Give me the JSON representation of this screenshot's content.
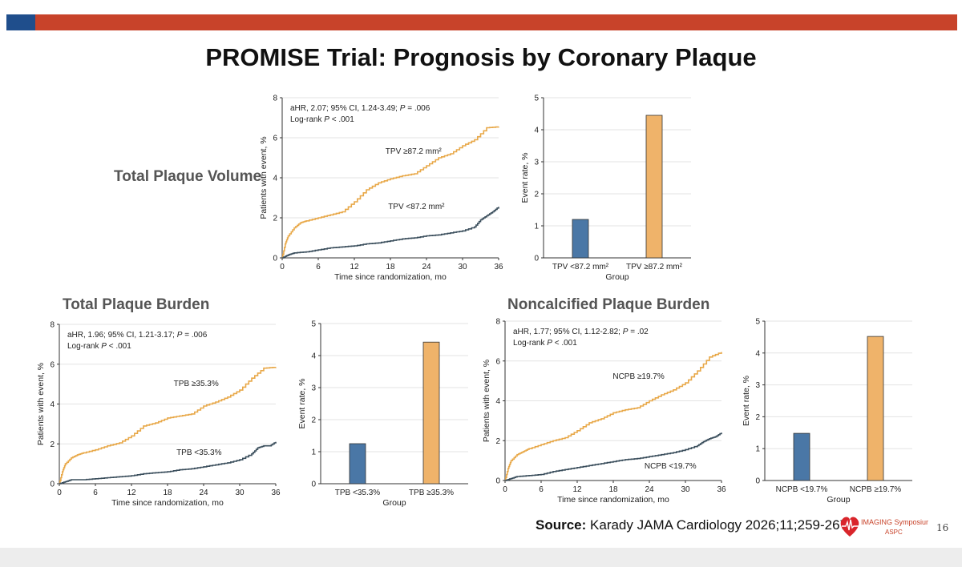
{
  "title": "PROMISE Trial: Prognosis by Coronary Plaque",
  "sections": [
    {
      "label": "Total Plaque Volume"
    },
    {
      "label": "Total Plaque Burden"
    },
    {
      "label": "Noncalcified Plaque Burden"
    }
  ],
  "source": {
    "prefix": "Source:",
    "text": " Karady JAMA Cardiology 2026;11;259-267."
  },
  "logo": {
    "line1": "IMAGING Symposium",
    "line2": "ASPC",
    "icon": "heart-ecg-icon"
  },
  "page_number": "16",
  "colors": {
    "high": "#e8a848",
    "low": "#3a4e5c",
    "bar_low": "#4a77a6",
    "bar_high": "#efb36a",
    "accent_red": "#c8432a",
    "accent_blue": "#1f4e8c"
  },
  "chart_data": [
    {
      "type": "line",
      "panel": "tpv-km",
      "annot1": "aHR, 2.07; 95% CI, 1.24-3.49; P = .006",
      "annot2": "Log-rank P < .001",
      "xlabel": "Time since randomization, mo",
      "ylabel": "Patients with event, %",
      "xlim": [
        0,
        36
      ],
      "ylim": [
        0,
        8
      ],
      "xticks": [
        0,
        6,
        12,
        18,
        24,
        30,
        36
      ],
      "yticks": [
        0,
        2,
        4,
        6,
        8
      ],
      "series": [
        {
          "name": "TPV ≥87.2 mm²",
          "color": "high",
          "x": [
            0,
            0.5,
            1,
            2,
            3,
            4,
            6,
            8,
            10,
            12,
            14,
            16,
            18,
            20,
            22,
            24,
            26,
            28,
            30,
            32,
            34,
            36
          ],
          "y": [
            0,
            0.7,
            1.1,
            1.5,
            1.75,
            1.85,
            2.0,
            2.15,
            2.3,
            2.8,
            3.4,
            3.75,
            3.95,
            4.1,
            4.2,
            4.6,
            5.0,
            5.2,
            5.6,
            5.9,
            6.5,
            6.55
          ]
        },
        {
          "name": "TPV <87.2 mm²",
          "color": "low",
          "x": [
            0,
            1,
            2,
            4,
            6,
            8,
            10,
            12,
            14,
            16,
            18,
            20,
            22,
            24,
            26,
            28,
            30,
            32,
            33,
            34,
            35,
            36
          ],
          "y": [
            0,
            0.15,
            0.25,
            0.3,
            0.4,
            0.5,
            0.55,
            0.6,
            0.7,
            0.75,
            0.85,
            0.95,
            1.0,
            1.1,
            1.15,
            1.25,
            1.35,
            1.55,
            1.9,
            2.1,
            2.3,
            2.55
          ]
        }
      ]
    },
    {
      "type": "bar",
      "panel": "tpv-bar",
      "categories": [
        "TPV <87.2 mm²",
        "TPV ≥87.2 mm²"
      ],
      "values": [
        1.2,
        4.45
      ],
      "xlabel": "Group",
      "ylabel": "Event rate, %",
      "ylim": [
        0,
        5
      ],
      "yticks": [
        0,
        1,
        2,
        3,
        4,
        5
      ]
    },
    {
      "type": "line",
      "panel": "tpb-km",
      "annot1": "aHR, 1.96; 95% CI, 1.21-3.17; P = .006",
      "annot2": "Log-rank P < .001",
      "xlabel": "Time since randomization, mo",
      "ylabel": "Patients with event, %",
      "xlim": [
        0,
        36
      ],
      "ylim": [
        0,
        8
      ],
      "xticks": [
        0,
        6,
        12,
        18,
        24,
        30,
        36
      ],
      "yticks": [
        0,
        2,
        4,
        6,
        8
      ],
      "series": [
        {
          "name": "TPB ≥35.3%",
          "color": "high",
          "x": [
            0,
            0.5,
            1,
            2,
            3,
            4,
            6,
            8,
            10,
            12,
            14,
            16,
            18,
            20,
            22,
            24,
            26,
            28,
            30,
            32,
            34,
            36
          ],
          "y": [
            0,
            0.6,
            1.0,
            1.3,
            1.45,
            1.55,
            1.7,
            1.9,
            2.05,
            2.4,
            2.9,
            3.05,
            3.3,
            3.4,
            3.5,
            3.9,
            4.1,
            4.35,
            4.7,
            5.3,
            5.8,
            5.85
          ]
        },
        {
          "name": "TPB <35.3%",
          "color": "low",
          "x": [
            0,
            1,
            2,
            4,
            6,
            8,
            10,
            12,
            14,
            16,
            18,
            20,
            22,
            24,
            26,
            28,
            30,
            32,
            33,
            34,
            35,
            36
          ],
          "y": [
            0,
            0.1,
            0.2,
            0.2,
            0.25,
            0.3,
            0.35,
            0.4,
            0.5,
            0.55,
            0.6,
            0.7,
            0.75,
            0.85,
            0.95,
            1.05,
            1.2,
            1.5,
            1.8,
            1.9,
            1.9,
            2.1
          ]
        }
      ]
    },
    {
      "type": "bar",
      "panel": "tpb-bar",
      "categories": [
        "TPB <35.3%",
        "TPB ≥35.3%"
      ],
      "values": [
        1.25,
        4.42
      ],
      "xlabel": "Group",
      "ylabel": "Event rate, %",
      "ylim": [
        0,
        5
      ],
      "yticks": [
        0,
        1,
        2,
        3,
        4,
        5
      ]
    },
    {
      "type": "line",
      "panel": "ncpb-km",
      "annot1": "aHR, 1.77; 95% CI, 1.12-2.82; P = .02",
      "annot2": "Log-rank P < .001",
      "xlabel": "Time since randomization, mo",
      "ylabel": "Patients with event, %",
      "xlim": [
        0,
        36
      ],
      "ylim": [
        0,
        8
      ],
      "xticks": [
        0,
        6,
        12,
        18,
        24,
        30,
        36
      ],
      "yticks": [
        0,
        2,
        4,
        6,
        8
      ],
      "series": [
        {
          "name": "NCPB ≥19.7%",
          "color": "high",
          "x": [
            0,
            0.5,
            1,
            2,
            3,
            4,
            6,
            8,
            10,
            12,
            14,
            16,
            18,
            20,
            22,
            24,
            26,
            28,
            30,
            32,
            34,
            36
          ],
          "y": [
            0,
            0.6,
            1.0,
            1.3,
            1.45,
            1.6,
            1.8,
            2.0,
            2.15,
            2.5,
            2.9,
            3.1,
            3.4,
            3.55,
            3.65,
            4.0,
            4.3,
            4.55,
            4.9,
            5.5,
            6.2,
            6.45
          ]
        },
        {
          "name": "NCPB <19.7%",
          "color": "low",
          "x": [
            0,
            1,
            2,
            4,
            6,
            8,
            10,
            12,
            14,
            16,
            18,
            20,
            22,
            24,
            26,
            28,
            30,
            32,
            33,
            34,
            35,
            36
          ],
          "y": [
            0,
            0.1,
            0.2,
            0.25,
            0.3,
            0.45,
            0.55,
            0.65,
            0.75,
            0.85,
            0.95,
            1.05,
            1.1,
            1.2,
            1.3,
            1.4,
            1.55,
            1.75,
            1.95,
            2.1,
            2.2,
            2.4
          ]
        }
      ]
    },
    {
      "type": "bar",
      "panel": "ncpb-bar",
      "categories": [
        "NCPB <19.7%",
        "NCPB ≥19.7%"
      ],
      "values": [
        1.48,
        4.52
      ],
      "xlabel": "Group",
      "ylabel": "Event rate, %",
      "ylim": [
        0,
        5
      ],
      "yticks": [
        0,
        1,
        2,
        3,
        4,
        5
      ]
    }
  ]
}
